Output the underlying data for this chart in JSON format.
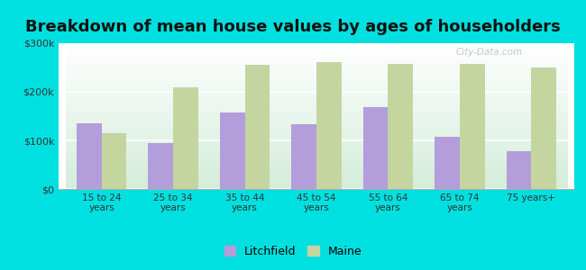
{
  "title": "Breakdown of mean house values by ages of householders",
  "categories": [
    "15 to 24\nyears",
    "25 to 34\nyears",
    "35 to 44\nyears",
    "45 to 54\nyears",
    "55 to 64\nyears",
    "65 to 74\nyears",
    "75 years+"
  ],
  "litchfield": [
    135000,
    95000,
    158000,
    133000,
    168000,
    108000,
    78000
  ],
  "maine": [
    115000,
    210000,
    255000,
    262000,
    258000,
    258000,
    250000
  ],
  "litchfield_color": "#b39ddb",
  "maine_color": "#c5d5a0",
  "background_color": "#00e0e0",
  "ylim": [
    0,
    300000
  ],
  "yticks": [
    0,
    100000,
    200000,
    300000
  ],
  "ytick_labels": [
    "$0",
    "$100k",
    "$200k",
    "$300k"
  ],
  "title_fontsize": 13,
  "legend_labels": [
    "Litchfield",
    "Maine"
  ],
  "bar_width": 0.35,
  "watermark": "City-Data.com"
}
